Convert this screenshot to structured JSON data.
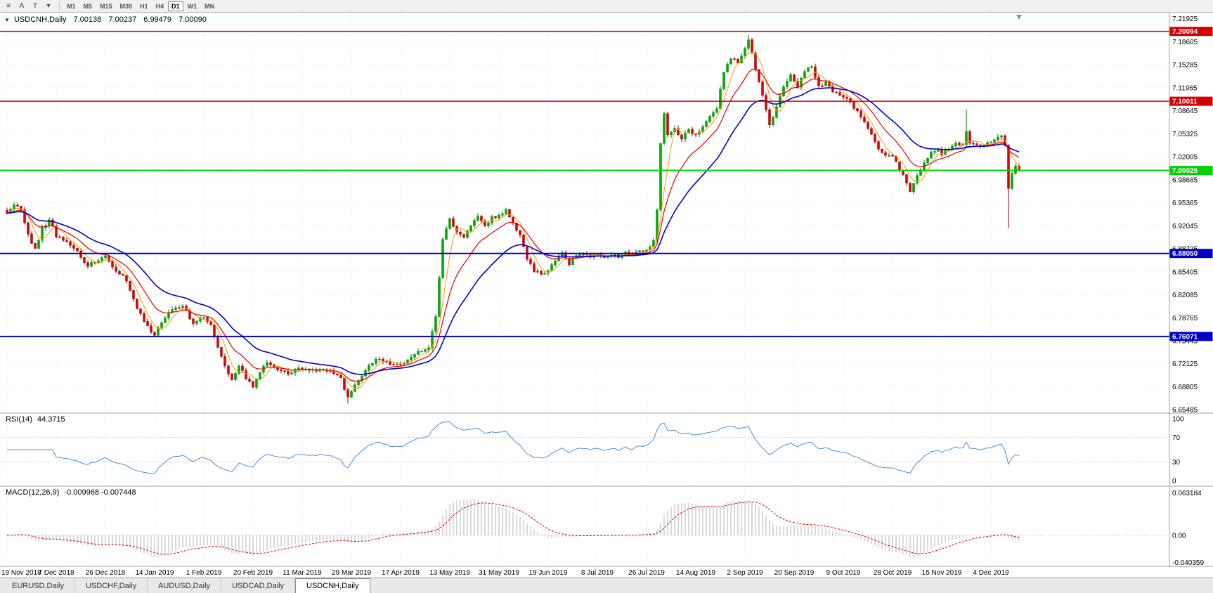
{
  "colors": {
    "background": "#ffffff",
    "grid": "#e4e4e4",
    "divider": "#9c9c9c",
    "candle_up": "#007c00",
    "candle_up_fill": "#00b200",
    "candle_down": "#9c0000",
    "candle_down_fill": "#e30000",
    "rsi_line": "#4a90d2",
    "rsi_level": "#cfcfcf",
    "macd_hist": "#b4b4b4",
    "macd_signal": "#e30000",
    "text": "#000000"
  },
  "toolbar": {
    "icons": [
      {
        "name": "charts-menu-icon",
        "glyph": "≡"
      },
      {
        "name": "cursor-tool-icon",
        "glyph": "A"
      },
      {
        "name": "text-tool-icon",
        "glyph": "T"
      },
      {
        "name": "objects-dropdown-icon",
        "glyph": "▾"
      }
    ],
    "timeframes": [
      "M1",
      "M5",
      "M15",
      "M30",
      "H1",
      "H4",
      "D1",
      "W1",
      "MN"
    ],
    "active_timeframe": "D1"
  },
  "main_chart": {
    "symbol_period": "USDCNH,Daily",
    "dropdown_glyph": "▼",
    "ohlc": {
      "open": "7.00138",
      "high": "7.00237",
      "low": "6.99479",
      "close": "7.00090"
    },
    "price_ticks": [
      "7.21925",
      "7.18605",
      "7.15285",
      "7.11965",
      "7.08645",
      "7.05325",
      "7.02005",
      "6.98685",
      "6.95365",
      "6.92045",
      "6.88725",
      "6.85405",
      "6.82085",
      "6.78765",
      "6.75445",
      "6.72125",
      "6.68805",
      "6.65485"
    ],
    "hlines": [
      {
        "price": 7.20094,
        "label": "7.20094",
        "color": "#d40000",
        "width": 1.5
      },
      {
        "price": 7.10011,
        "label": "7.10011",
        "color": "#d40000",
        "width": 1.5
      },
      {
        "price": 7.00029,
        "label": "7.00029",
        "color": "#00d300",
        "width": 2
      },
      {
        "price": 6.8805,
        "label": "6.88050",
        "color": "#0000c8",
        "width": 2
      },
      {
        "price": 6.76071,
        "label": "6.76071",
        "color": "#0000c8",
        "width": 2
      }
    ]
  },
  "rsi_panel": {
    "label": "RSI(14)",
    "value": "44.3715",
    "scale": [
      "100",
      "70",
      "30",
      "0"
    ],
    "scale_values": [
      100,
      70,
      30,
      0
    ],
    "levels": [
      70,
      30
    ]
  },
  "macd_panel": {
    "label": "MACD(12,26,9)",
    "values": "-0.009968 -0.007448",
    "scale_max": "0.063184",
    "scale_zero": "0.00",
    "scale_min": "-0.040359"
  },
  "x_axis": {
    "label_step_days": 14,
    "labels": [
      "19 Nov 2018",
      "7 Dec 2018",
      "26 Dec 2018",
      "14 Jan 2019",
      "1 Feb 2019",
      "20 Feb 2019",
      "11 Mar 2019",
      "29 Mar 2019",
      "17 Apr 2019",
      "13 May 2019",
      "31 May 2019",
      "19 Jun 2019",
      "8 Jul 2019",
      "26 Jul 2019",
      "14 Aug 2019",
      "2 Sep 2019",
      "20 Sep 2019",
      "9 Oct 2019",
      "28 Oct 2019",
      "15 Nov 2019",
      "4 Dec 2019"
    ]
  },
  "tabs": [
    "EURUSD,Daily",
    "USDCHF,Daily",
    "AUDUSD,Daily",
    "USDCAD,Daily",
    "USDCNH,Daily"
  ],
  "active_tab": "USDCNH,Daily",
  "chart_data": {
    "type": "candlestick",
    "symbol": "USDCNH",
    "timeframe": "Daily",
    "bar_count": 289,
    "last_close": 7.0009,
    "price_range": {
      "max": 7.228,
      "min": 6.65
    },
    "close_anchors": [
      [
        0,
        6.938
      ],
      [
        2,
        6.952
      ],
      [
        4,
        6.944
      ],
      [
        6,
        6.908
      ],
      [
        8,
        6.886
      ],
      [
        10,
        6.916
      ],
      [
        12,
        6.93
      ],
      [
        14,
        6.906
      ],
      [
        17,
        6.896
      ],
      [
        20,
        6.884
      ],
      [
        23,
        6.862
      ],
      [
        26,
        6.872
      ],
      [
        28,
        6.876
      ],
      [
        31,
        6.856
      ],
      [
        34,
        6.842
      ],
      [
        37,
        6.8
      ],
      [
        40,
        6.774
      ],
      [
        42,
        6.762
      ],
      [
        44,
        6.782
      ],
      [
        47,
        6.8
      ],
      [
        50,
        6.806
      ],
      [
        53,
        6.778
      ],
      [
        56,
        6.79
      ],
      [
        58,
        6.778
      ],
      [
        60,
        6.744
      ],
      [
        62,
        6.716
      ],
      [
        64,
        6.696
      ],
      [
        66,
        6.718
      ],
      [
        68,
        6.7
      ],
      [
        70,
        6.688
      ],
      [
        72,
        6.71
      ],
      [
        74,
        6.722
      ],
      [
        77,
        6.714
      ],
      [
        80,
        6.706
      ],
      [
        84,
        6.716
      ],
      [
        88,
        6.712
      ],
      [
        92,
        6.708
      ],
      [
        95,
        6.7
      ],
      [
        97,
        6.672
      ],
      [
        99,
        6.69
      ],
      [
        102,
        6.712
      ],
      [
        105,
        6.728
      ],
      [
        108,
        6.722
      ],
      [
        112,
        6.72
      ],
      [
        115,
        6.73
      ],
      [
        118,
        6.74
      ],
      [
        120,
        6.744
      ],
      [
        122,
        6.79
      ],
      [
        123,
        6.845
      ],
      [
        124,
        6.9
      ],
      [
        125,
        6.916
      ],
      [
        126,
        6.93
      ],
      [
        128,
        6.912
      ],
      [
        130,
        6.902
      ],
      [
        132,
        6.92
      ],
      [
        134,
        6.936
      ],
      [
        136,
        6.922
      ],
      [
        138,
        6.932
      ],
      [
        140,
        6.936
      ],
      [
        142,
        6.942
      ],
      [
        144,
        6.926
      ],
      [
        146,
        6.906
      ],
      [
        148,
        6.872
      ],
      [
        150,
        6.856
      ],
      [
        152,
        6.85
      ],
      [
        154,
        6.856
      ],
      [
        156,
        6.872
      ],
      [
        158,
        6.88
      ],
      [
        160,
        6.866
      ],
      [
        162,
        6.876
      ],
      [
        164,
        6.88
      ],
      [
        166,
        6.876
      ],
      [
        168,
        6.88
      ],
      [
        170,
        6.874
      ],
      [
        172,
        6.88
      ],
      [
        174,
        6.876
      ],
      [
        176,
        6.881
      ],
      [
        178,
        6.877
      ],
      [
        180,
        6.883
      ],
      [
        182,
        6.885
      ],
      [
        184,
        6.898
      ],
      [
        185,
        6.944
      ],
      [
        186,
        7.04
      ],
      [
        187,
        7.082
      ],
      [
        188,
        7.05
      ],
      [
        190,
        7.062
      ],
      [
        192,
        7.046
      ],
      [
        194,
        7.058
      ],
      [
        196,
        7.05
      ],
      [
        198,
        7.064
      ],
      [
        200,
        7.078
      ],
      [
        202,
        7.09
      ],
      [
        204,
        7.142
      ],
      [
        206,
        7.162
      ],
      [
        208,
        7.156
      ],
      [
        210,
        7.178
      ],
      [
        211,
        7.19
      ],
      [
        213,
        7.148
      ],
      [
        215,
        7.108
      ],
      [
        217,
        7.064
      ],
      [
        219,
        7.092
      ],
      [
        221,
        7.122
      ],
      [
        223,
        7.138
      ],
      [
        225,
        7.12
      ],
      [
        227,
        7.144
      ],
      [
        229,
        7.148
      ],
      [
        231,
        7.12
      ],
      [
        233,
        7.128
      ],
      [
        235,
        7.112
      ],
      [
        238,
        7.108
      ],
      [
        240,
        7.098
      ],
      [
        242,
        7.084
      ],
      [
        244,
        7.068
      ],
      [
        246,
        7.052
      ],
      [
        248,
        7.032
      ],
      [
        250,
        7.022
      ],
      [
        252,
        7.02
      ],
      [
        254,
        7.002
      ],
      [
        256,
        6.982
      ],
      [
        257,
        6.972
      ],
      [
        259,
        6.992
      ],
      [
        261,
        7.012
      ],
      [
        263,
        7.026
      ],
      [
        265,
        7.03
      ],
      [
        266,
        7.024
      ],
      [
        268,
        7.032
      ],
      [
        270,
        7.038
      ],
      [
        272,
        7.036
      ],
      [
        273,
        7.056
      ],
      [
        274,
        7.04
      ],
      [
        276,
        7.036
      ],
      [
        278,
        7.038
      ],
      [
        280,
        7.04
      ],
      [
        282,
        7.046
      ],
      [
        283,
        7.05
      ],
      [
        284,
        7.034
      ],
      [
        285,
        6.974
      ],
      [
        286,
        6.996
      ],
      [
        287,
        7.004
      ],
      [
        288,
        7.0009
      ]
    ],
    "wick_overrides": [
      {
        "day": 97,
        "low": 6.664
      },
      {
        "day": 211,
        "high": 7.1965
      },
      {
        "day": 273,
        "high": 7.088
      },
      {
        "day": 285,
        "low": 6.917
      }
    ],
    "moving_averages": [
      {
        "period": 5,
        "method": "sma",
        "color": "#ff9800",
        "width": 1
      },
      {
        "period": 12,
        "method": "ema",
        "color": "#e30000",
        "width": 1.2
      },
      {
        "period": 26,
        "method": "ema",
        "color": "#0000cc",
        "width": 1.6
      }
    ],
    "indicators": [
      {
        "name": "RSI",
        "period": 14,
        "current": 44.3715
      },
      {
        "name": "MACD",
        "fast": 12,
        "slow": 26,
        "signal": 9,
        "current_main": -0.009968,
        "current_signal": -0.007448
      }
    ],
    "horizontal_lines": [
      7.20094,
      7.10011,
      7.00029,
      6.8805,
      6.76071
    ]
  }
}
